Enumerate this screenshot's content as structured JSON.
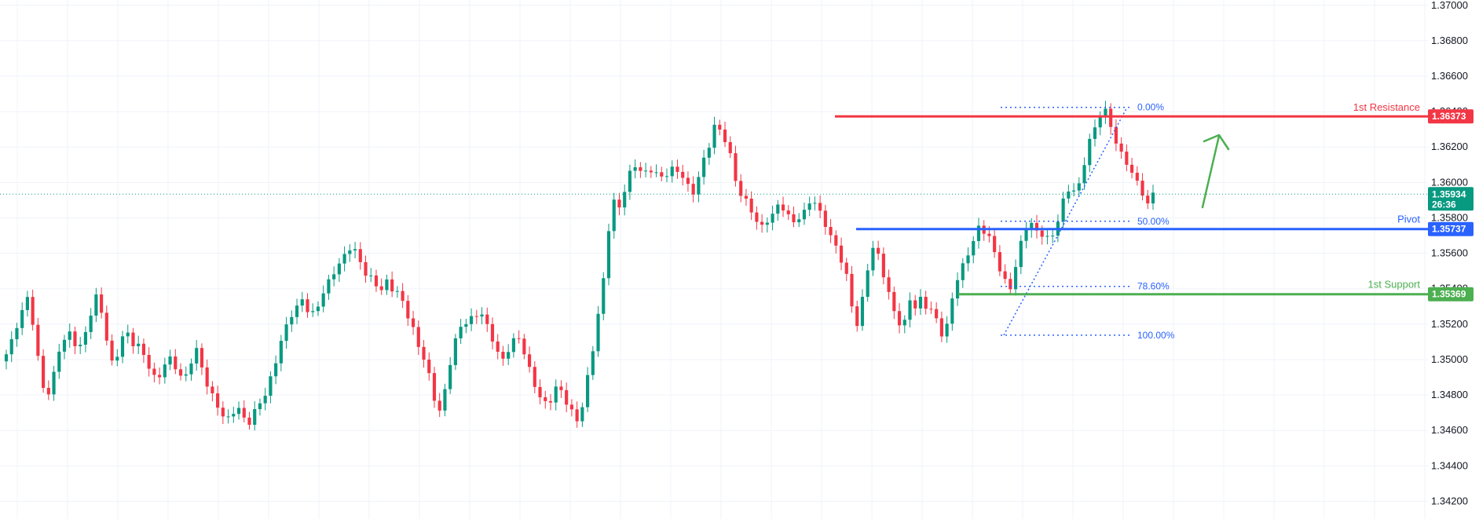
{
  "chart_data": {
    "type": "candlestick",
    "y_axis": {
      "side": "right",
      "ylim": [
        1.341,
        1.3703
      ],
      "ticks": [
        "1.37000",
        "1.36800",
        "1.36600",
        "1.36400",
        "1.36200",
        "1.36000",
        "1.35800",
        "1.35600",
        "1.35400",
        "1.35200",
        "1.35000",
        "1.34800",
        "1.34600",
        "1.34400",
        "1.34200"
      ]
    },
    "grid": true,
    "colors": {
      "up": "#089981",
      "down": "#f23645",
      "resistance": "#f23645",
      "pivot": "#2962ff",
      "support": "#4caf50",
      "fib": "#2962ff",
      "current": "#089981",
      "arrow": "#4caf50"
    },
    "levels": [
      {
        "key": "resistance",
        "label": "1st Resistance",
        "value": "1.36373",
        "price": 1.36373
      },
      {
        "key": "pivot",
        "label": "Pivot",
        "value": "1.35737",
        "price": 1.35737
      },
      {
        "key": "support",
        "label": "1st Support",
        "value": "1.35369",
        "price": 1.35369
      }
    ],
    "current_price": {
      "value": "1.35934",
      "price": 1.35934,
      "countdown": "26:36"
    },
    "fibonacci": {
      "high": 1.36424,
      "low": 1.35138,
      "levels": [
        {
          "label": "0.00%",
          "ratio": 0.0
        },
        {
          "label": "50.00%",
          "ratio": 0.5
        },
        {
          "label": "78.60%",
          "ratio": 0.786
        },
        {
          "label": "100.00%",
          "ratio": 1.0
        }
      ]
    },
    "annotation": "upward-arrow",
    "path": [
      1.3502,
      1.351,
      1.352,
      1.3528,
      1.3535,
      1.352,
      1.35,
      1.3485,
      1.3482,
      1.3492,
      1.3505,
      1.351,
      1.3515,
      1.351,
      1.3508,
      1.3515,
      1.3525,
      1.3535,
      1.3528,
      1.3512,
      1.3498,
      1.3502,
      1.3512,
      1.3515,
      1.351,
      1.3508,
      1.3502,
      1.3495,
      1.349,
      1.3492,
      1.3498,
      1.35,
      1.3495,
      1.349,
      1.3492,
      1.35,
      1.3505,
      1.3495,
      1.3485,
      1.348,
      1.3475,
      1.3468,
      1.3466,
      1.347,
      1.3472,
      1.3468,
      1.3465,
      1.347,
      1.3475,
      1.348,
      1.349,
      1.35,
      1.351,
      1.3518,
      1.3525,
      1.353,
      1.3535,
      1.3528,
      1.3525,
      1.353,
      1.3538,
      1.3545,
      1.355,
      1.3553,
      1.3558,
      1.3563,
      1.3562,
      1.3556,
      1.3548,
      1.3545,
      1.3542,
      1.354,
      1.3545,
      1.354,
      1.3537,
      1.3532,
      1.3525,
      1.3518,
      1.3508,
      1.35,
      1.349,
      1.3478,
      1.3472,
      1.3483,
      1.3498,
      1.351,
      1.3518,
      1.3522,
      1.3524,
      1.3525,
      1.3525,
      1.3518,
      1.3512,
      1.3505,
      1.35,
      1.3505,
      1.351,
      1.3512,
      1.3505,
      1.3495,
      1.3485,
      1.3478,
      1.3475,
      1.3478,
      1.3485,
      1.3482,
      1.3475,
      1.347,
      1.3466,
      1.3475,
      1.349,
      1.3505,
      1.3525,
      1.3545,
      1.3575,
      1.359,
      1.3585,
      1.3595,
      1.3605,
      1.361,
      1.3608,
      1.3605,
      1.3606,
      1.3605,
      1.3603,
      1.3606,
      1.3608,
      1.3605,
      1.3603,
      1.3598,
      1.3595,
      1.3604,
      1.3612,
      1.362,
      1.3632,
      1.363,
      1.3625,
      1.3615,
      1.36,
      1.3593,
      1.359,
      1.3585,
      1.3578,
      1.3574,
      1.3578,
      1.3582,
      1.3588,
      1.3586,
      1.358,
      1.3577,
      1.358,
      1.3584,
      1.359,
      1.3588,
      1.3582,
      1.3576,
      1.357,
      1.3565,
      1.3556,
      1.3546,
      1.353,
      1.352,
      1.3535,
      1.3552,
      1.3562,
      1.3558,
      1.3548,
      1.3538,
      1.3528,
      1.352,
      1.352,
      1.3534,
      1.353,
      1.3535,
      1.353,
      1.3527,
      1.3522,
      1.3515,
      1.352,
      1.3535,
      1.3545,
      1.3552,
      1.356,
      1.3568,
      1.3575,
      1.3572,
      1.3568,
      1.356,
      1.3552,
      1.3545,
      1.354,
      1.3552,
      1.3565,
      1.3575,
      1.3578,
      1.3572,
      1.357,
      1.3568,
      1.357,
      1.358,
      1.359,
      1.3595,
      1.3595,
      1.3598,
      1.3612,
      1.3625,
      1.363,
      1.3638,
      1.364,
      1.3632,
      1.3624,
      1.3616,
      1.361,
      1.3605,
      1.36,
      1.3595,
      1.3588,
      1.3593
    ]
  }
}
